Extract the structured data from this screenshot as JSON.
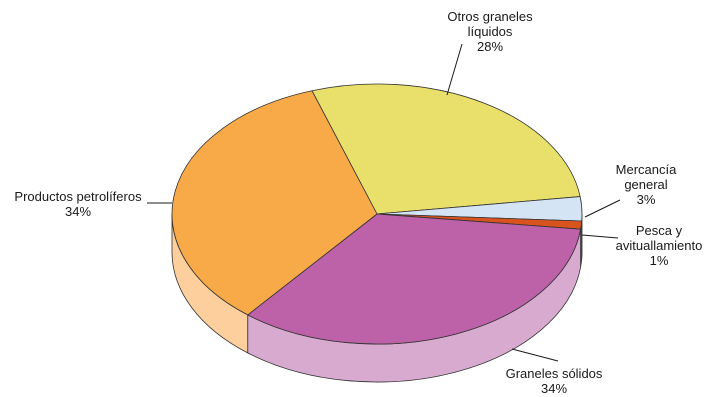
{
  "chart_data": {
    "type": "pie",
    "style": "3d",
    "slices": [
      {
        "label_lines": [
          "Otros graneles",
          "líquidos"
        ],
        "value": 28,
        "value_label": "28%",
        "color": "#e8e06a",
        "side_color": "#d4cc58"
      },
      {
        "label_lines": [
          "Mercancía",
          "general"
        ],
        "value": 3,
        "value_label": "3%",
        "color": "#d4e4f4",
        "side_color": "#b8c8d8"
      },
      {
        "label_lines": [
          "Pesca y",
          "avituallamiento"
        ],
        "value": 1,
        "value_label": "1%",
        "color": "#d9531e",
        "side_color": "#b84414"
      },
      {
        "label_lines": [
          "Graneles sólidos"
        ],
        "value": 34,
        "value_label": "34%",
        "color": "#bd61a8",
        "side_color": "#d8aad0"
      },
      {
        "label_lines": [
          "Productos petrolíferos"
        ],
        "value": 34,
        "value_label": "34%",
        "color": "#f8a948",
        "side_color": "#fccf9c"
      }
    ]
  }
}
